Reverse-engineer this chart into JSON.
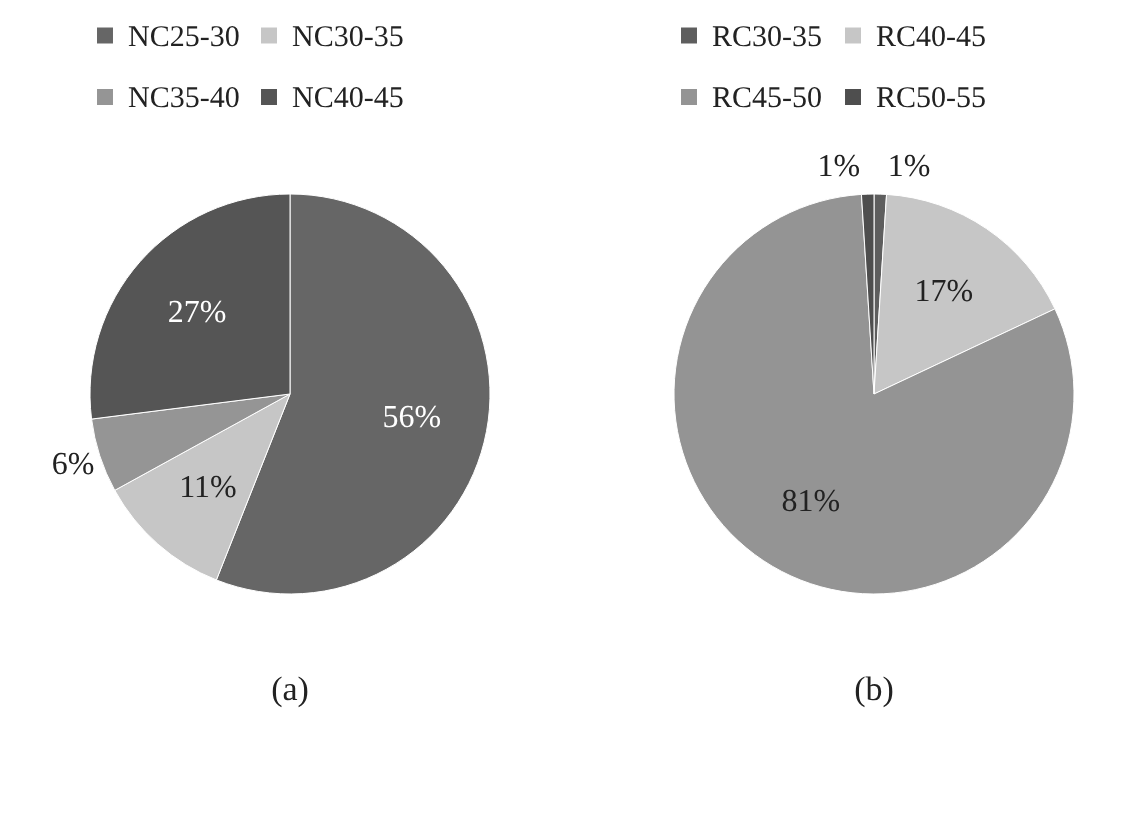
{
  "chart_data": [
    {
      "type": "pie",
      "title": "(a)",
      "legend": "top",
      "value_labels": [
        "56%",
        "11%",
        "6%",
        "27%"
      ],
      "categories": [
        "NC25-30",
        "NC30-35",
        "NC35-40",
        "NC40-45"
      ],
      "values": [
        56,
        11,
        6,
        27
      ],
      "colors": [
        "#666666",
        "#c6c6c6",
        "#959595",
        "#555555"
      ]
    },
    {
      "type": "pie",
      "title": "(b)",
      "legend": "top",
      "value_labels": [
        "1%",
        "17%",
        "81%",
        "1%"
      ],
      "categories": [
        "RC30-35",
        "RC40-45",
        "RC45-50",
        "RC50-55"
      ],
      "values": [
        1,
        17,
        81,
        1
      ],
      "colors": [
        "#5e5e5e",
        "#c6c6c6",
        "#949494",
        "#4e4e4e"
      ]
    }
  ]
}
